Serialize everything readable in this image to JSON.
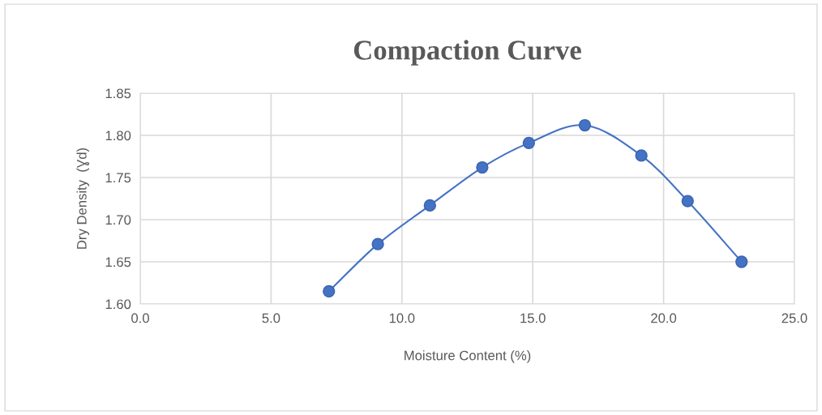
{
  "chart_data": {
    "type": "line",
    "title": "Compaction Curve",
    "xlabel": "Moisture Content (%)",
    "ylabel": "Dry Density  (Ɣd)",
    "series": [
      {
        "color": "#4472c4",
        "x": [
          7.21,
          9.08,
          11.07,
          13.07,
          14.85,
          16.99,
          19.15,
          20.92,
          22.98
        ],
        "values": [
          1.615,
          1.671,
          1.717,
          1.762,
          1.791,
          1.812,
          1.776,
          1.722,
          1.65
        ]
      }
    ],
    "marker": "circle",
    "line_style": "solid",
    "grid": true,
    "legend": false,
    "xlim": [
      0,
      25
    ],
    "xticks": [
      {
        "value": 0,
        "label": "0.0"
      },
      {
        "value": 5,
        "label": "5.0"
      },
      {
        "value": 10,
        "label": "10.0"
      },
      {
        "value": 15,
        "label": "15.0"
      },
      {
        "value": 20,
        "label": "20.0"
      },
      {
        "value": 25,
        "label": "25.0"
      }
    ],
    "ylim": [
      1.6,
      1.85
    ],
    "yticks": [
      {
        "value": 1.6,
        "label": "1.60"
      },
      {
        "value": 1.65,
        "label": "1.65"
      },
      {
        "value": 1.7,
        "label": "1.70"
      },
      {
        "value": 1.75,
        "label": "1.75"
      },
      {
        "value": 1.8,
        "label": "1.80"
      },
      {
        "value": 1.85,
        "label": "1.85"
      }
    ]
  }
}
